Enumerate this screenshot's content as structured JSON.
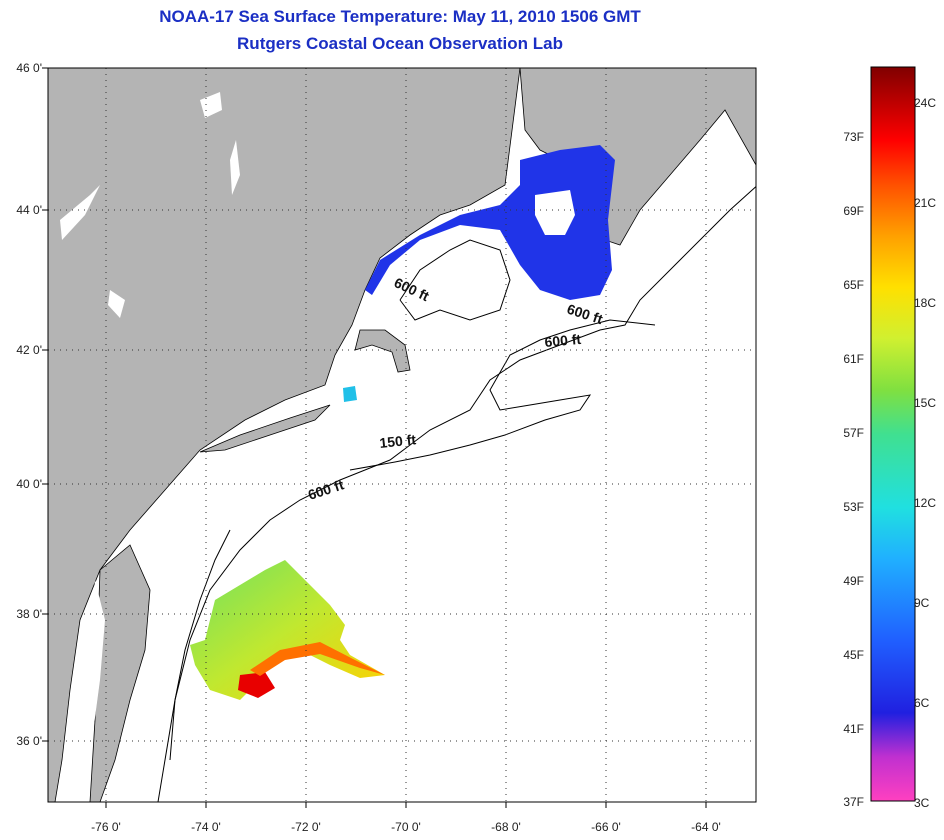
{
  "title": {
    "line1": "NOAA-17 Sea Surface Temperature:  May 11, 2010 1506 GMT",
    "line2": "Rutgers Coastal Ocean Observation Lab"
  },
  "map": {
    "lat_labels": [
      "46 0'",
      "44 0'",
      "42 0'",
      "40 0'",
      "38 0'",
      "36 0'"
    ],
    "lon_labels": [
      "-76 0'",
      "-74 0'",
      "-72 0'",
      "-70 0'",
      "-68 0'",
      "-66 0'",
      "-64 0'"
    ],
    "contour_labels": [
      "600 ft",
      "600 ft",
      "600 ft",
      "150 ft",
      "600 ft"
    ],
    "colors": {
      "land": "#b4b4b4",
      "ocean": "#ffffff",
      "coastline": "#000000"
    }
  },
  "colorbar": {
    "fahrenheit_labels": [
      "73F",
      "69F",
      "65F",
      "61F",
      "57F",
      "53F",
      "49F",
      "45F",
      "41F",
      "37F"
    ],
    "celsius_labels": [
      "24C",
      "21C",
      "18C",
      "15C",
      "12C",
      "9C",
      "6C",
      "3C"
    ],
    "colors": [
      "#ff40c0",
      "#a030d0",
      "#2020e0",
      "#2080ff",
      "#20e0e0",
      "#60e060",
      "#d0f030",
      "#ffd000",
      "#ff6000",
      "#e00000",
      "#800000"
    ]
  }
}
